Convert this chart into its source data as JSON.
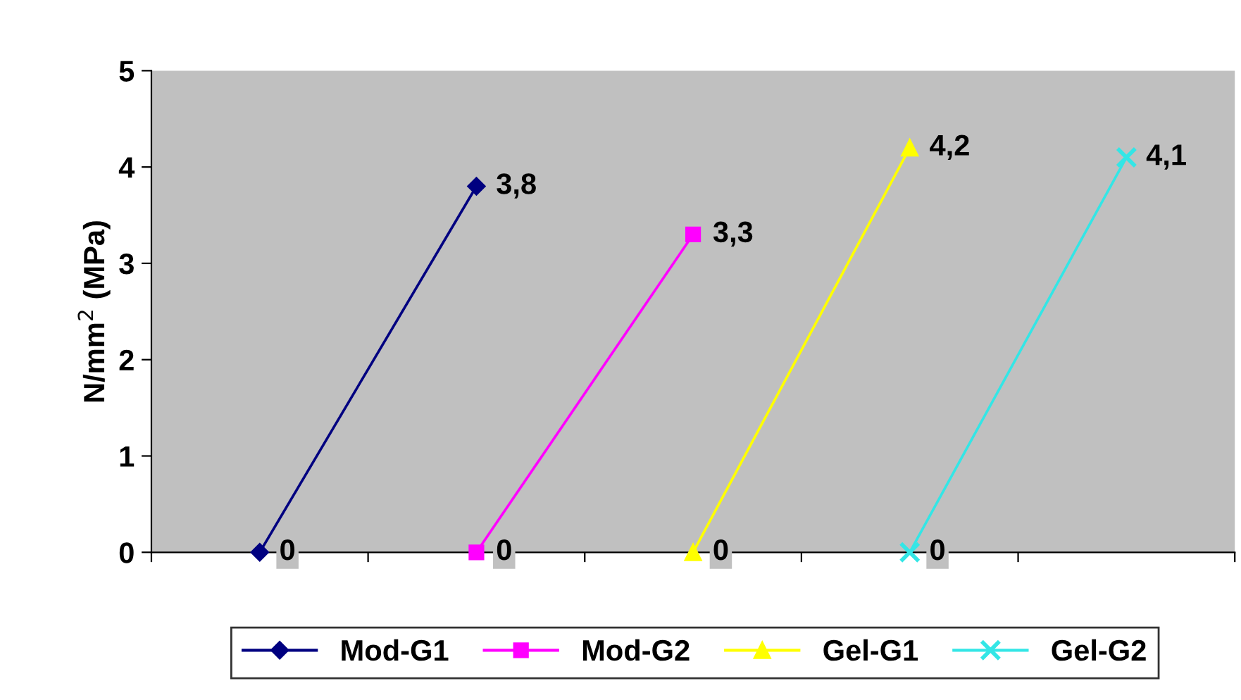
{
  "chart_data": {
    "type": "line",
    "ylabel": "N/mm$^{2}$ (MPa)",
    "categories": [
      null,
      null,
      null,
      null,
      null
    ],
    "ylim": [
      0,
      5
    ],
    "yticks": [
      0,
      1,
      2,
      3,
      4,
      5
    ],
    "tick_labels": "y",
    "grid": false,
    "legend": "bottom",
    "line_style": "solid",
    "series": [
      {
        "name": "Mod-G1",
        "color": "#000080",
        "marker": "diamond",
        "values": [
          0,
          3.8,
          null,
          null,
          null
        ],
        "value_labels": [
          "0",
          "3,8",
          null,
          null,
          null
        ]
      },
      {
        "name": "Mod-G2",
        "color": "#ff00ff",
        "marker": "square",
        "values": [
          null,
          0,
          3.3,
          null,
          null
        ],
        "value_labels": [
          null,
          "0",
          "3,3",
          null,
          null
        ]
      },
      {
        "name": "Gel-G1",
        "color": "#ffff00",
        "marker": "triangle",
        "values": [
          null,
          null,
          0,
          4.2,
          null
        ],
        "value_labels": [
          null,
          null,
          "0",
          "4,2",
          null
        ]
      },
      {
        "name": "Gel-G2",
        "color": "#33e6e6",
        "marker": "cross",
        "values": [
          null,
          null,
          null,
          0,
          4.1
        ],
        "value_labels": [
          null,
          null,
          null,
          "0",
          "4,1"
        ]
      }
    ]
  }
}
